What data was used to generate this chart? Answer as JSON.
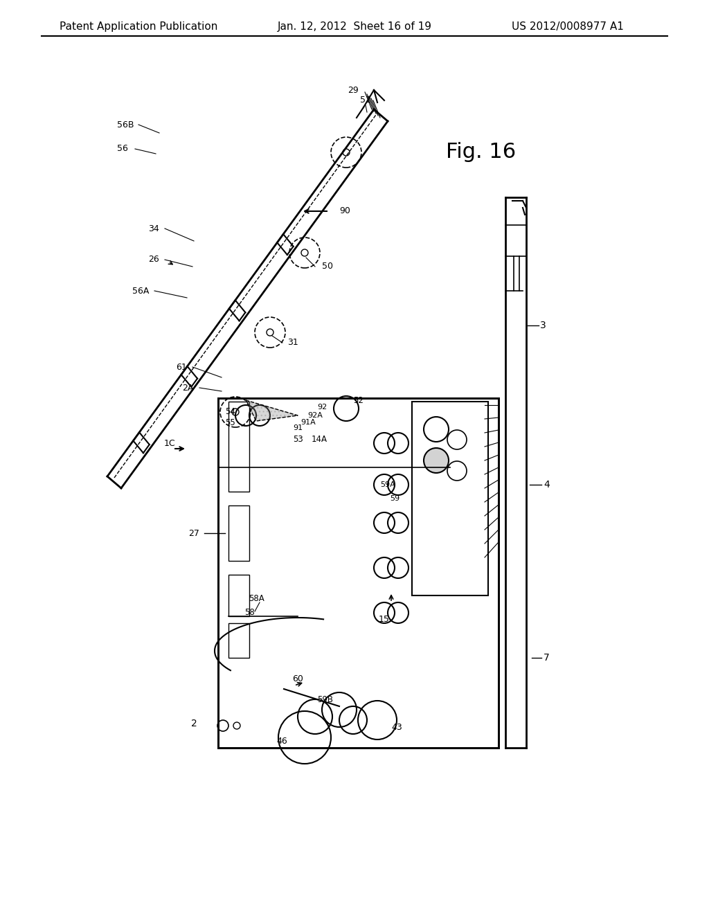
{
  "bg_color": "#ffffff",
  "line_color": "#000000",
  "header_left": "Patent Application Publication",
  "header_mid": "Jan. 12, 2012  Sheet 16 of 19",
  "header_right": "US 2012/0008977 A1",
  "fig_label": "Fig. 16",
  "title_fontsize": 11,
  "body_fontsize": 9,
  "label_fontsize": 8.5
}
